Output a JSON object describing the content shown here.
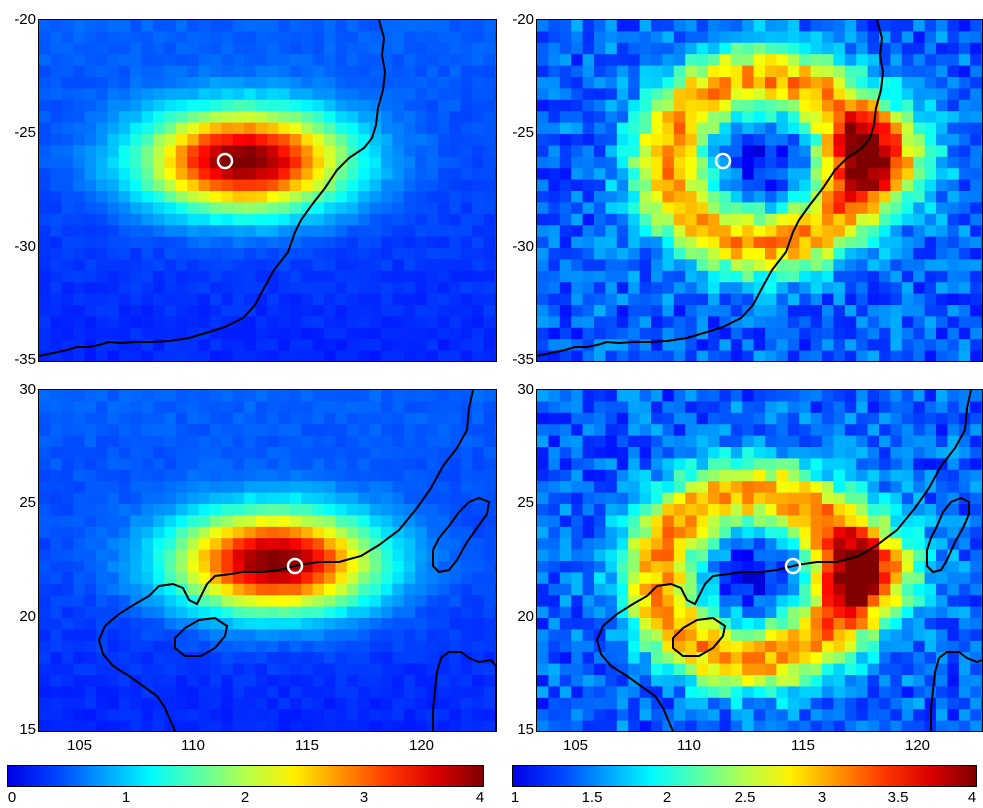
{
  "panels": [
    {
      "id": "top-left",
      "y_ticks": [
        "-20",
        "-25",
        "-30",
        "-35"
      ],
      "x_ticks": [],
      "color_scale": "jet",
      "pattern": "blob",
      "station_label": ""
    },
    {
      "id": "top-right",
      "y_ticks": [
        "-20",
        "-25",
        "-30",
        "-35"
      ],
      "x_ticks": [],
      "color_scale": "jet",
      "pattern": "ring",
      "station_label": ""
    },
    {
      "id": "bottom-left",
      "y_ticks": [
        "30",
        "25",
        "20",
        "15"
      ],
      "x_ticks": [
        "105",
        "110",
        "115",
        "120"
      ],
      "color_scale": "jet",
      "pattern": "blob",
      "station_label": ""
    },
    {
      "id": "bottom-right",
      "y_ticks": [
        "30",
        "25",
        "20",
        "15"
      ],
      "x_ticks": [
        "105",
        "110",
        "115",
        "120"
      ],
      "color_scale": "jet",
      "pattern": "ring",
      "station_label": ""
    }
  ],
  "colorbars": [
    {
      "id": "left",
      "min": 0,
      "max": 4,
      "ticks": [
        "0",
        "1",
        "2",
        "3",
        "4"
      ]
    },
    {
      "id": "right",
      "min": 1,
      "max": 4,
      "ticks": [
        "1",
        "1.5",
        "2",
        "2.5",
        "3",
        "3.5",
        "4"
      ]
    }
  ],
  "colors": {
    "station_marker": "#ffffff",
    "coastline": "#000000",
    "low": "#00008f",
    "high": "#800000"
  },
  "chart_data": {
    "type": "heatmap",
    "colormap": "jet",
    "maps": [
      {
        "id": "top-left",
        "ylim": [
          -35,
          -20
        ],
        "y_ticks": [
          -20,
          -25,
          -30,
          -35
        ],
        "station": [
          111,
          -26.2
        ],
        "peak_value": 4
      },
      {
        "id": "top-right",
        "ylim": [
          -35,
          -20
        ],
        "y_ticks": [
          -20,
          -25,
          -30,
          -35
        ],
        "station": [
          111,
          -26.2
        ],
        "peak_value": 4
      },
      {
        "id": "bottom-left",
        "xlim": [
          103,
          123
        ],
        "ylim": [
          15,
          30
        ],
        "x_ticks": [
          105,
          110,
          115,
          120
        ],
        "y_ticks": [
          30,
          25,
          20,
          15
        ],
        "station": [
          114.2,
          22.3
        ],
        "peak_value": 4
      },
      {
        "id": "bottom-right",
        "xlim": [
          103,
          123
        ],
        "ylim": [
          15,
          30
        ],
        "x_ticks": [
          105,
          110,
          115,
          120
        ],
        "y_ticks": [
          30,
          25,
          20,
          15
        ],
        "station": [
          114.2,
          22.3
        ],
        "peak_value": 4
      }
    ],
    "colorbars": [
      {
        "range": [
          0,
          4
        ],
        "ticks": [
          0,
          1,
          2,
          3,
          4
        ]
      },
      {
        "range": [
          1,
          4
        ],
        "ticks": [
          1,
          1.5,
          2,
          2.5,
          3,
          3.5,
          4
        ]
      }
    ]
  }
}
